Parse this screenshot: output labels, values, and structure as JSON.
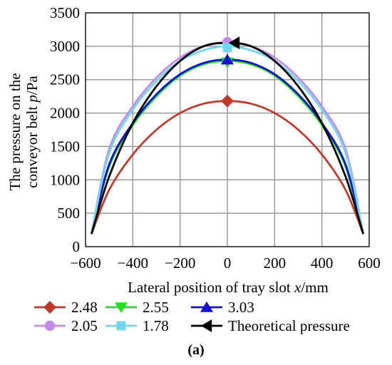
{
  "chart_data": {
    "type": "line",
    "xlabel_prefix": "Lateral position of tray slot ",
    "xlabel_var": "x",
    "xlabel_unit": "/mm",
    "ylabel_line1": "The pressure on the",
    "ylabel_line2_prefix": "conveyor belt ",
    "ylabel_var": "p",
    "ylabel_unit": "/Pa",
    "xlim": [
      -600,
      600
    ],
    "ylim": [
      0,
      3500
    ],
    "xticks": [
      -600,
      -400,
      -200,
      0,
      200,
      400,
      600
    ],
    "yticks": [
      0,
      500,
      1000,
      1500,
      2000,
      2500,
      3000,
      3500
    ],
    "xtick_labels": [
      "−600",
      "−400",
      "−200",
      "0",
      "200",
      "400",
      "600"
    ],
    "ytick_labels": [
      "0",
      "500",
      "1000",
      "1500",
      "2000",
      "2500",
      "3000",
      "3500"
    ],
    "grid": true,
    "legend_position": "below",
    "x": [
      -575,
      -500,
      -400,
      -300,
      -200,
      -100,
      0,
      100,
      200,
      300,
      400,
      500,
      575
    ],
    "series": [
      {
        "name": "2.48",
        "color": "#c0392b",
        "marker": "diamond",
        "marker_x": 0,
        "marker_y": 2180,
        "values": [
          190,
          850,
          1380,
          1750,
          2000,
          2140,
          2180,
          2140,
          2000,
          1750,
          1380,
          850,
          190
        ]
      },
      {
        "name": "2.55",
        "color": "#22dd22",
        "marker": "triangle-down",
        "marker_x": 0,
        "marker_y": 2760,
        "values": [
          190,
          1200,
          1820,
          2250,
          2560,
          2730,
          2780,
          2730,
          2560,
          2250,
          1820,
          1200,
          190
        ]
      },
      {
        "name": "3.03",
        "color": "#1010d0",
        "marker": "triangle-up",
        "marker_x": 0,
        "marker_y": 2800,
        "values": [
          190,
          1230,
          1850,
          2280,
          2580,
          2750,
          2800,
          2750,
          2580,
          2280,
          1850,
          1230,
          190
        ]
      },
      {
        "name": "2.05",
        "color": "#c58be8",
        "marker": "circle",
        "marker_x": 0,
        "marker_y": 3060,
        "values": [
          190,
          1460,
          2100,
          2530,
          2830,
          3000,
          3060,
          3000,
          2830,
          2530,
          2100,
          1460,
          190
        ]
      },
      {
        "name": "1.78",
        "color": "#6fd8ee",
        "marker": "square",
        "marker_x": 0,
        "marker_y": 2980,
        "values": [
          190,
          1400,
          2050,
          2480,
          2780,
          2940,
          3000,
          2940,
          2780,
          2480,
          2050,
          1400,
          190
        ]
      },
      {
        "name": "Theoretical pressure",
        "color": "#000000",
        "marker": "triangle-left",
        "marker_x": 30,
        "marker_y": 3050,
        "values": [
          190,
          1050,
          1850,
          2400,
          2780,
          3000,
          3050,
          3000,
          2780,
          2400,
          1850,
          1050,
          190
        ]
      }
    ],
    "legend_rows": [
      [
        "2.48",
        "2.55",
        "3.03"
      ],
      [
        "2.05",
        "1.78",
        "Theoretical pressure"
      ]
    ]
  },
  "caption": "(a)"
}
